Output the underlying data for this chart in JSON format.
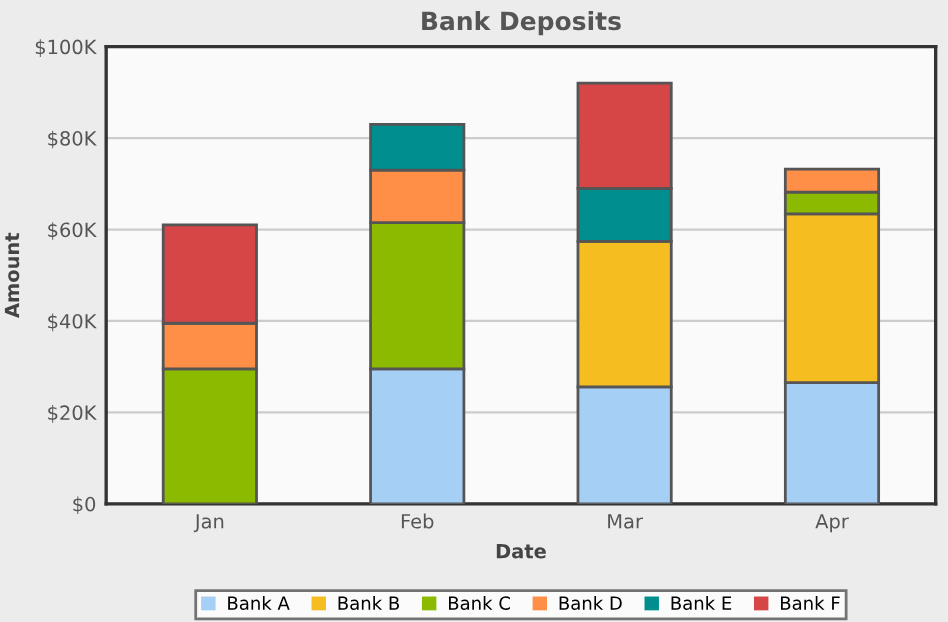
{
  "chart_data": {
    "type": "bar",
    "title": "Bank Deposits",
    "xlabel": "Date",
    "ylabel": "Amount",
    "categories": [
      "Jan",
      "Feb",
      "Mar",
      "Apr"
    ],
    "stacked": true,
    "series": [
      {
        "name": "Bank A",
        "color": "#a6cff5",
        "values": [
          null,
          29.5,
          25.6,
          26.5
        ]
      },
      {
        "name": "Bank B",
        "color": "#f5bd1f",
        "values": [
          null,
          null,
          31.8,
          36.9
        ]
      },
      {
        "name": "Bank C",
        "color": "#8bba00",
        "values": [
          29.5,
          32,
          null,
          4.8
        ]
      },
      {
        "name": "Bank D",
        "color": "#ff8e46",
        "values": [
          10,
          11.5,
          null,
          5
        ]
      },
      {
        "name": "Bank E",
        "color": "#008e8e",
        "values": [
          null,
          10,
          11.6,
          null
        ]
      },
      {
        "name": "Bank F",
        "color": "#d64646",
        "values": [
          21.5,
          null,
          23,
          null
        ]
      }
    ],
    "ylim": [
      0,
      100
    ],
    "yticks": [
      {
        "value": 0,
        "label": "$0"
      },
      {
        "value": 20,
        "label": "$20K"
      },
      {
        "value": 40,
        "label": "$40K"
      },
      {
        "value": 60,
        "label": "$60K"
      },
      {
        "value": 80,
        "label": "$80K"
      },
      {
        "value": 100,
        "label": "$100K"
      }
    ],
    "grid": "y",
    "legend": "bottom"
  }
}
